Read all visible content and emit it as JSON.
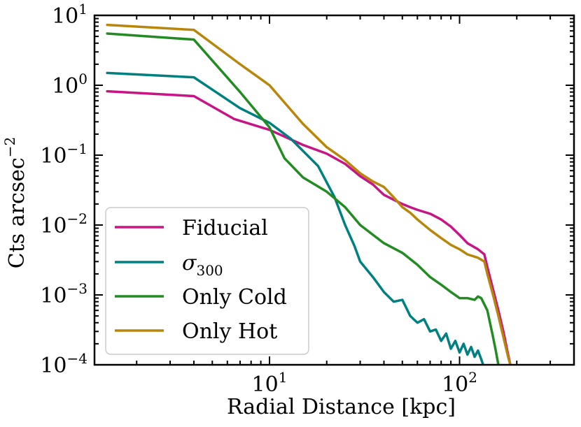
{
  "chart_data": {
    "type": "line",
    "xlabel": "Radial Distance [kpc]",
    "ylabel_base": "Cts arcsec",
    "ylabel_exp": "−2",
    "xscale": "log",
    "yscale": "log",
    "xlim": [
      1.2,
      400
    ],
    "ylim": [
      0.0001,
      10
    ],
    "grid": false,
    "legend_position": "lower-left",
    "x_ticks": [
      {
        "base": "10",
        "exp": "1",
        "value": 10
      },
      {
        "base": "10",
        "exp": "2",
        "value": 100
      }
    ],
    "y_ticks": [
      {
        "base": "10",
        "exp": "−4",
        "value": 0.0001
      },
      {
        "base": "10",
        "exp": "−3",
        "value": 0.001
      },
      {
        "base": "10",
        "exp": "−2",
        "value": 0.01
      },
      {
        "base": "10",
        "exp": "−1",
        "value": 0.1
      },
      {
        "base": "10",
        "exp": "0",
        "value": 1
      },
      {
        "base": "10",
        "exp": "1",
        "value": 10
      }
    ],
    "series": [
      {
        "name": "Fiducial",
        "color": "#c71585",
        "x": [
          1.4,
          4,
          6.5,
          10,
          15,
          20,
          25,
          30,
          35,
          40,
          45,
          50,
          55,
          60,
          70,
          80,
          90,
          100,
          110,
          125,
          135,
          140,
          150,
          160,
          170,
          180,
          185
        ],
        "y": [
          0.82,
          0.7,
          0.33,
          0.23,
          0.14,
          0.105,
          0.075,
          0.05,
          0.038,
          0.027,
          0.023,
          0.02,
          0.018,
          0.0165,
          0.0145,
          0.012,
          0.0095,
          0.0072,
          0.0055,
          0.0045,
          0.0038,
          0.0025,
          0.0012,
          0.0006,
          0.0003,
          0.00014,
          0.0001
        ]
      },
      {
        "name": "σ300",
        "name_base": "σ",
        "name_sub": "300",
        "color": "#008080",
        "x": [
          1.4,
          4,
          7,
          10,
          13,
          18,
          22,
          25,
          28,
          30,
          35,
          40,
          45,
          50,
          55,
          60,
          65,
          70,
          75,
          80,
          85,
          90,
          95,
          100,
          105,
          110,
          115,
          120,
          125,
          130,
          133
        ],
        "y": [
          1.5,
          1.3,
          0.47,
          0.29,
          0.17,
          0.07,
          0.025,
          0.01,
          0.005,
          0.003,
          0.0018,
          0.0011,
          0.0008,
          0.00085,
          0.0005,
          0.0004,
          0.00045,
          0.0003,
          0.00032,
          0.00022,
          0.00028,
          0.00017,
          0.00022,
          0.00015,
          0.0002,
          0.00014,
          0.00018,
          0.00013,
          0.00016,
          0.00012,
          0.0001
        ]
      },
      {
        "name": "Only Cold",
        "color": "#228b22",
        "x": [
          1.4,
          4,
          7,
          10,
          12,
          15,
          20,
          25,
          30,
          40,
          50,
          60,
          70,
          80,
          90,
          100,
          110,
          120,
          125,
          130,
          140,
          150,
          155,
          160
        ],
        "y": [
          5.5,
          4.5,
          0.8,
          0.25,
          0.09,
          0.048,
          0.03,
          0.018,
          0.01,
          0.0055,
          0.004,
          0.0027,
          0.0018,
          0.0014,
          0.0011,
          0.0009,
          0.0009,
          0.00085,
          0.00095,
          0.0009,
          0.0006,
          0.00025,
          0.00016,
          0.0001
        ]
      },
      {
        "name": "Only Hot",
        "color": "#b8860b",
        "x": [
          1.4,
          4,
          7,
          10,
          15,
          20,
          25,
          30,
          35,
          40,
          45,
          50,
          55,
          60,
          70,
          80,
          90,
          100,
          110,
          125,
          135,
          140,
          150,
          160,
          170,
          180,
          185
        ],
        "y": [
          7.3,
          6.2,
          2.0,
          1.0,
          0.28,
          0.13,
          0.085,
          0.055,
          0.042,
          0.035,
          0.025,
          0.018,
          0.015,
          0.012,
          0.0085,
          0.0065,
          0.0052,
          0.0045,
          0.0038,
          0.0034,
          0.003,
          0.002,
          0.001,
          0.0005,
          0.00025,
          0.00013,
          0.0001
        ]
      }
    ]
  }
}
